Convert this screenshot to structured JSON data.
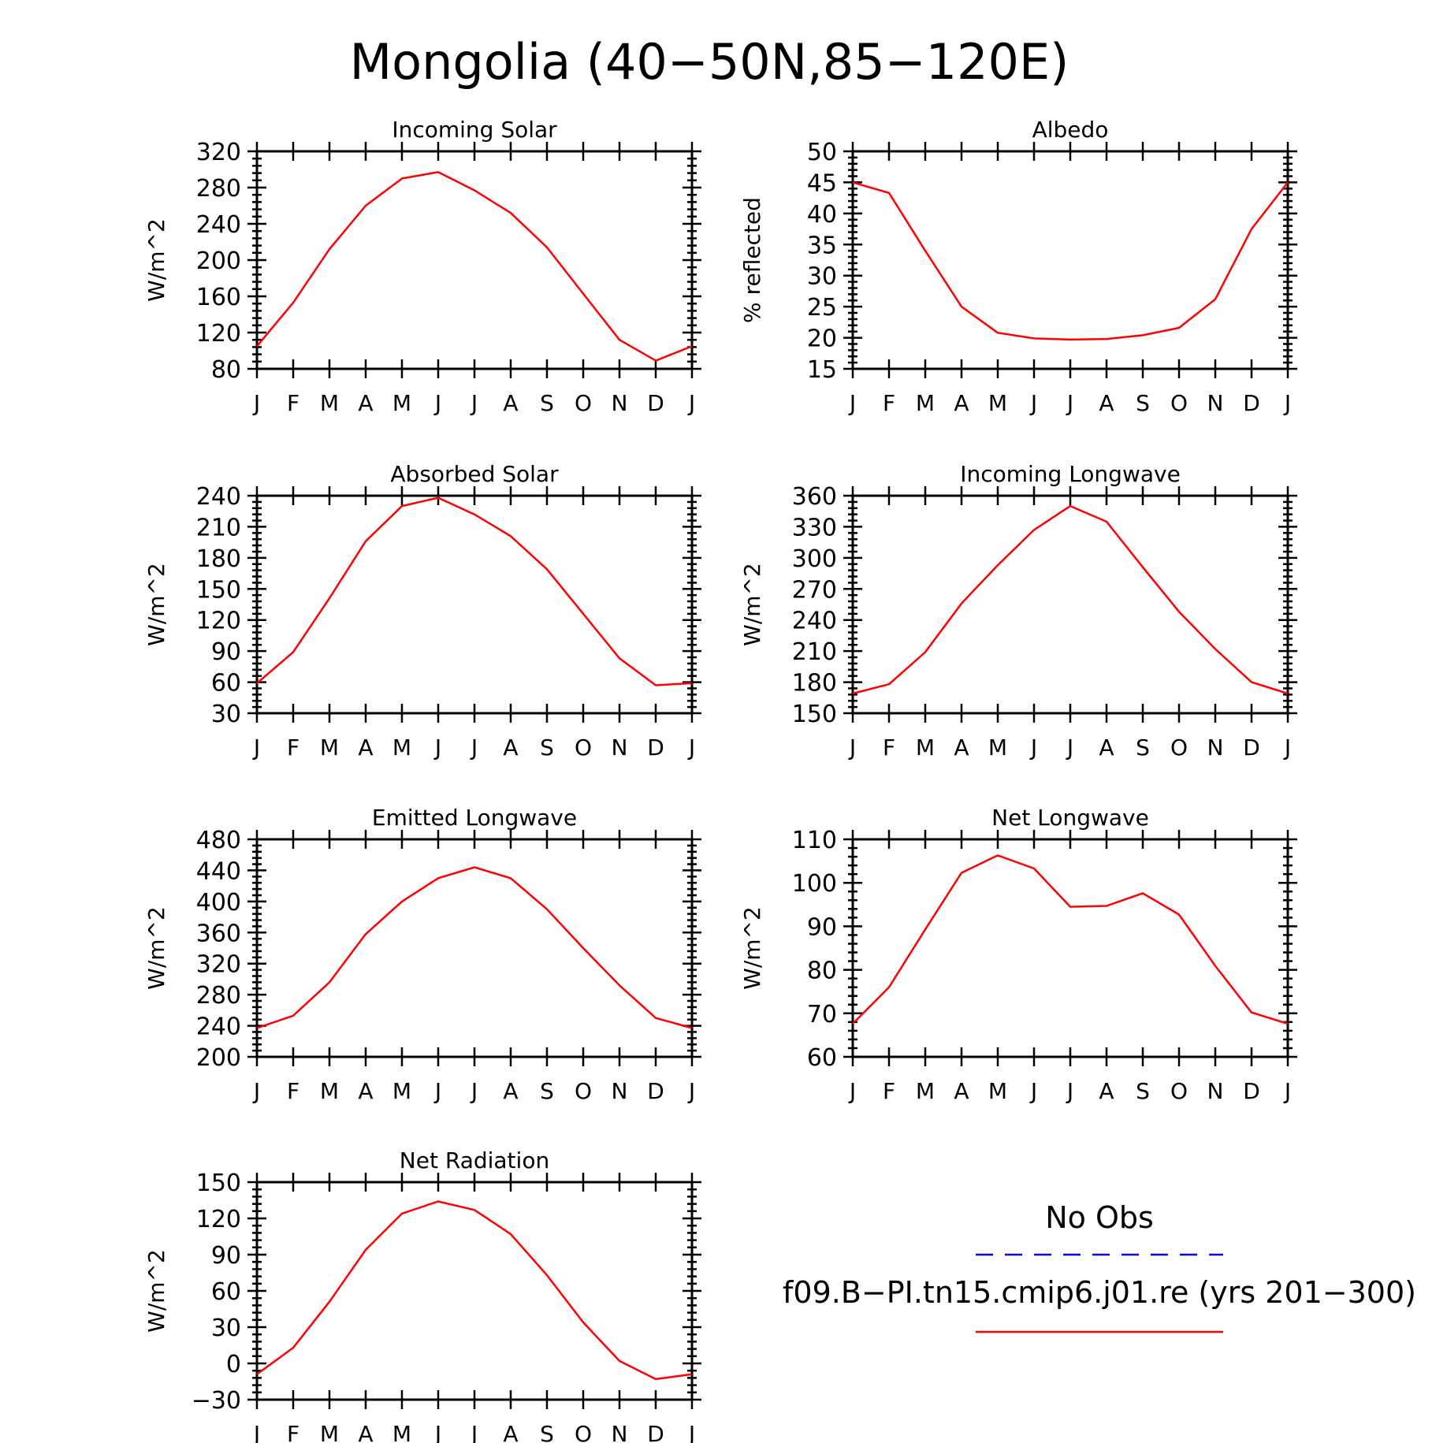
{
  "figure": {
    "title": "Mongolia (40−50N,85−120E)"
  },
  "month_labels": [
    "J",
    "F",
    "M",
    "A",
    "M",
    "J",
    "J",
    "A",
    "S",
    "O",
    "N",
    "D",
    "J"
  ],
  "chart_data": [
    {
      "id": "incoming-solar",
      "type": "line",
      "title": "Incoming Solar",
      "ylabel": "W/m^2",
      "ylim": [
        80,
        320
      ],
      "yticks": [
        80,
        120,
        160,
        200,
        240,
        280,
        320
      ],
      "series": [
        {
          "color": "#ff0000",
          "values": [
            105,
            153,
            212,
            260,
            290,
            297,
            277,
            252,
            214,
            163,
            112,
            89,
            105
          ]
        }
      ]
    },
    {
      "id": "albedo",
      "type": "line",
      "title": "Albedo",
      "ylabel": "% reflected",
      "ylim": [
        15,
        50
      ],
      "yticks": [
        15,
        20,
        25,
        30,
        35,
        40,
        45,
        50
      ],
      "series": [
        {
          "color": "#ff0000",
          "values": [
            45,
            43.3,
            34,
            25,
            20.8,
            19.9,
            19.7,
            19.8,
            20.4,
            21.6,
            26.2,
            37.5,
            45
          ]
        }
      ]
    },
    {
      "id": "absorbed-solar",
      "type": "line",
      "title": "Absorbed Solar",
      "ylabel": "W/m^2",
      "ylim": [
        30,
        240
      ],
      "yticks": [
        30,
        60,
        90,
        120,
        150,
        180,
        210,
        240
      ],
      "series": [
        {
          "color": "#ff0000",
          "values": [
            59,
            89,
            141,
            196,
            230,
            238,
            222,
            201,
            169,
            126,
            83,
            57,
            59
          ]
        }
      ]
    },
    {
      "id": "incoming-longwave",
      "type": "line",
      "title": "Incoming Longwave",
      "ylabel": "W/m^2",
      "ylim": [
        150,
        360
      ],
      "yticks": [
        150,
        180,
        210,
        240,
        270,
        300,
        330,
        360
      ],
      "series": [
        {
          "color": "#ff0000",
          "values": [
            169,
            178,
            209,
            256,
            293,
            327,
            350,
            335,
            291,
            248,
            212,
            180,
            169
          ]
        }
      ]
    },
    {
      "id": "emitted-longwave",
      "type": "line",
      "title": "Emitted Longwave",
      "ylabel": "W/m^2",
      "ylim": [
        200,
        480
      ],
      "yticks": [
        200,
        240,
        280,
        320,
        360,
        400,
        440,
        480
      ],
      "series": [
        {
          "color": "#ff0000",
          "values": [
            237,
            253,
            296,
            358,
            400,
            430,
            444,
            430,
            390,
            340,
            292,
            250,
            237
          ]
        }
      ]
    },
    {
      "id": "net-longwave",
      "type": "line",
      "title": "Net Longwave",
      "ylabel": "W/m^2",
      "ylim": [
        60,
        110
      ],
      "yticks": [
        60,
        70,
        80,
        90,
        100,
        110
      ],
      "series": [
        {
          "color": "#ff0000",
          "values": [
            67.6,
            76,
            89.3,
            102.3,
            106.3,
            103.3,
            94.5,
            94.7,
            97.6,
            92.7,
            80.9,
            70.2,
            67.6
          ]
        }
      ]
    },
    {
      "id": "net-radiation",
      "type": "line",
      "title": "Net Radiation",
      "ylabel": "W/m^2",
      "ylim": [
        -30,
        150
      ],
      "yticks": [
        -30,
        0,
        30,
        60,
        90,
        120,
        150
      ],
      "series": [
        {
          "color": "#ff0000",
          "values": [
            -9,
            13,
            51,
            94,
            124,
            134,
            127,
            107,
            73,
            34,
            2,
            -13,
            -9
          ]
        }
      ]
    }
  ],
  "legend": {
    "obs_label": "No Obs",
    "obs_color": "#0000ff",
    "model_label": "f09.B−PI.tn15.cmip6.j01.re (yrs 201−300)",
    "model_color": "#ff0000"
  }
}
